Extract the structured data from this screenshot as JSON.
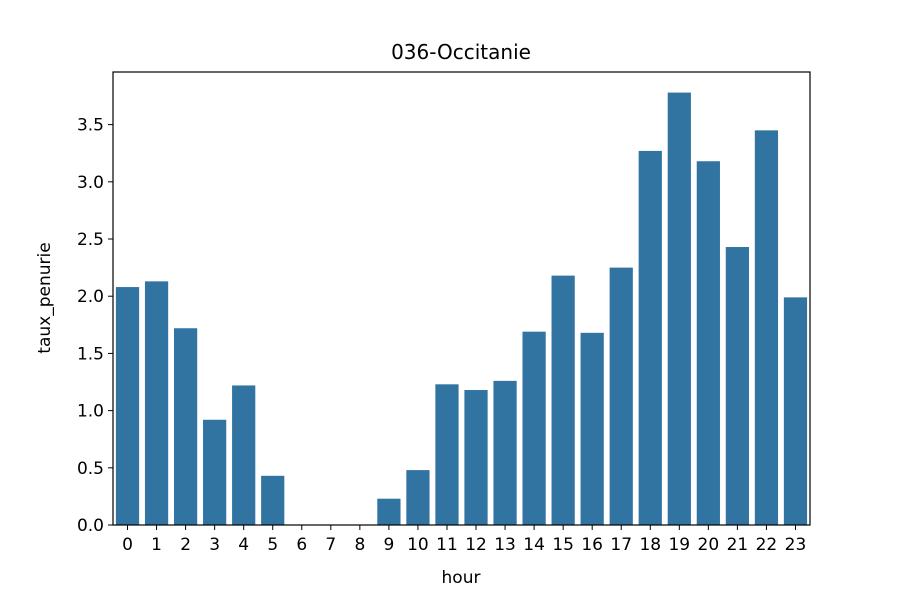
{
  "chart_data": {
    "type": "bar",
    "title": "036-Occitanie",
    "xlabel": "hour",
    "ylabel": "taux_penurie",
    "categories": [
      "0",
      "1",
      "2",
      "3",
      "4",
      "5",
      "6",
      "7",
      "8",
      "9",
      "10",
      "11",
      "12",
      "13",
      "14",
      "15",
      "16",
      "17",
      "18",
      "19",
      "20",
      "21",
      "22",
      "23"
    ],
    "values": [
      2.08,
      2.13,
      1.72,
      0.92,
      1.22,
      0.43,
      0,
      0,
      0,
      0.23,
      0.48,
      1.23,
      1.18,
      1.26,
      1.69,
      2.18,
      1.68,
      2.25,
      3.27,
      3.78,
      3.18,
      2.43,
      3.45,
      1.99
    ],
    "ylim": [
      0,
      3.96
    ],
    "yticks": [
      0.0,
      0.5,
      1.0,
      1.5,
      2.0,
      2.5,
      3.0,
      3.5
    ],
    "ytick_labels": [
      "0.0",
      "0.5",
      "1.0",
      "1.5",
      "2.0",
      "2.5",
      "3.0",
      "3.5"
    ],
    "bar_color": "#3274a1",
    "grid": false
  }
}
